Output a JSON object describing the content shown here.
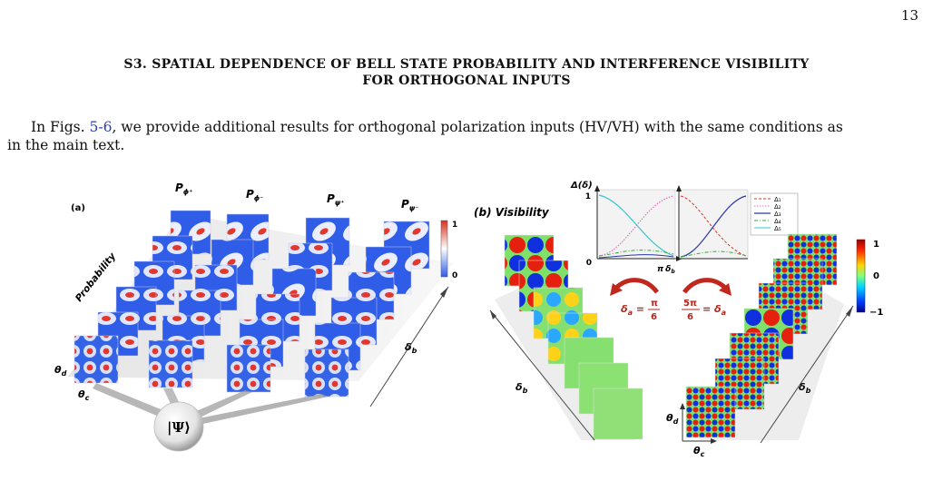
{
  "page_number": "13",
  "heading_line1": "S3. SPATIAL DEPENDENCE OF BELL STATE PROBABILITY AND INTERFERENCE VISIBILITY",
  "heading_line2": "FOR ORTHOGONAL INPUTS",
  "paragraph": {
    "before_ref": "In Figs. ",
    "ref": "5-6",
    "after_ref": ", we provide additional results for orthogonal polarization inputs (HV/VH) with the same conditions as",
    "line2": "in the main text."
  },
  "figure": {
    "panel_a": {
      "label": "(a)",
      "probability_label": "Probability",
      "columns": [
        "P",
        "P",
        "P",
        "P"
      ],
      "column_subs": [
        "ϕ⁺",
        "ϕ⁻",
        "ψ⁺",
        "ψ⁻"
      ],
      "colorbar_max": "1",
      "colorbar_min": "0",
      "theta_d": "θ",
      "theta_d_sub": "d",
      "theta_c": "θ",
      "theta_c_sub": "c",
      "delta_b": "δ",
      "delta_b_sub": "b",
      "source": "|Ψ⟩"
    },
    "panel_b": {
      "label": "(b) Visibility",
      "delta_axis": "Δ(δ)",
      "inset_y_top": "1",
      "inset_y_bottom": "0",
      "inset_x_right": "π",
      "inset_x_sub": "δ",
      "inset_x_subsub": "b",
      "legend": [
        "Δ₁",
        "Δ₂",
        "Δ₃",
        "Δ₄",
        "Δ₅"
      ],
      "legend_colors": [
        "#d9352c",
        "#e36fbf",
        "#2b3aa3",
        "#38a83a",
        "#36c8cf"
      ],
      "left_eq_lhs": "δ",
      "left_eq_lhs_sub": "a",
      "left_eq_num": "π",
      "left_eq_den": "6",
      "right_eq_num": "5π",
      "right_eq_den": "6",
      "right_eq_rhs": "δ",
      "right_eq_rhs_sub": "a",
      "colorbar_max": "1",
      "colorbar_mid": "0",
      "colorbar_min": "−1",
      "delta_b_left": "δ",
      "delta_b_right": "δ",
      "delta_b_sub": "b",
      "theta_d": "θ",
      "theta_d_sub": "d",
      "theta_c": "θ",
      "theta_c_sub": "c"
    },
    "colors": {
      "prob_blue": "#2f5de8",
      "prob_red": "#e0382c",
      "arrow_red": "#c0281e",
      "eq_red": "#b3261e"
    }
  }
}
